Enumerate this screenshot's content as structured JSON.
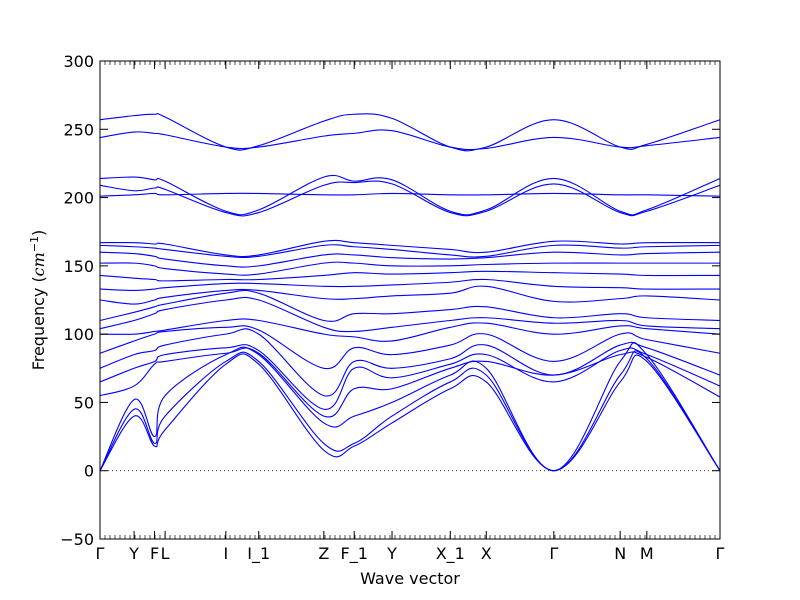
{
  "chart_data": {
    "type": "line",
    "title": "",
    "xlabel": "Wave vector",
    "ylabel_prefix": "Frequency (",
    "ylabel_unit": "cm",
    "ylabel_exp": "−1",
    "ylabel_suffix": ")",
    "ylim": [
      -50,
      300
    ],
    "yticks": [
      -50,
      0,
      50,
      100,
      150,
      200,
      250,
      300
    ],
    "ytick_labels": [
      "−50",
      "0",
      "50",
      "100",
      "150",
      "200",
      "250",
      "300"
    ],
    "xlim": [
      0,
      1
    ],
    "xticks": [
      {
        "label": "Γ",
        "x": 0.0
      },
      {
        "label": "Y",
        "x": 0.055
      },
      {
        "label": "F",
        "x": 0.088
      },
      {
        "label": "L",
        "x": 0.105
      },
      {
        "label": "I",
        "x": 0.203
      },
      {
        "label": "I_1",
        "x": 0.256
      },
      {
        "label": "Z",
        "x": 0.361
      },
      {
        "label": "F_1",
        "x": 0.41
      },
      {
        "label": "Y",
        "x": 0.471
      },
      {
        "label": "X_1",
        "x": 0.565
      },
      {
        "label": "X",
        "x": 0.623
      },
      {
        "label": "Γ",
        "x": 0.732
      },
      {
        "label": "N",
        "x": 0.839
      },
      {
        "label": "M",
        "x": 0.882
      },
      {
        "label": "Γ",
        "x": 1.0
      }
    ],
    "zero_line": true,
    "grid": false,
    "series_color": "#0000ff",
    "x": [
      0.0,
      0.055,
      0.088,
      0.105,
      0.203,
      0.256,
      0.361,
      0.41,
      0.471,
      0.565,
      0.623,
      0.732,
      0.839,
      0.882,
      1.0
    ],
    "series": [
      {
        "values": [
          0,
          40,
          18,
          30,
          78,
          78,
          15,
          18,
          35,
          60,
          65,
          0,
          65,
          80,
          0
        ]
      },
      {
        "values": [
          0,
          45,
          20,
          40,
          80,
          80,
          20,
          20,
          40,
          65,
          70,
          0,
          70,
          82,
          0
        ]
      },
      {
        "values": [
          0,
          52,
          25,
          55,
          85,
          85,
          35,
          40,
          50,
          70,
          75,
          0,
          80,
          85,
          0
        ]
      },
      {
        "values": [
          55,
          62,
          78,
          80,
          86,
          86,
          40,
          60,
          60,
          75,
          80,
          70,
          85,
          83,
          54
        ]
      },
      {
        "values": [
          65,
          75,
          80,
          85,
          90,
          88,
          45,
          75,
          68,
          78,
          85,
          65,
          88,
          85,
          62
        ]
      },
      {
        "values": [
          75,
          85,
          88,
          92,
          100,
          100,
          55,
          80,
          75,
          82,
          92,
          70,
          92,
          90,
          70
        ]
      },
      {
        "values": [
          86,
          95,
          100,
          102,
          105,
          103,
          75,
          90,
          85,
          92,
          100,
          80,
          100,
          96,
          86
        ]
      },
      {
        "values": [
          100,
          100,
          102,
          103,
          110,
          110,
          100,
          98,
          95,
          105,
          108,
          100,
          106,
          104,
          100
        ]
      },
      {
        "values": [
          104,
          110,
          115,
          118,
          125,
          125,
          105,
          102,
          105,
          110,
          112,
          108,
          110,
          106,
          104
        ]
      },
      {
        "values": [
          110,
          116,
          120,
          122,
          130,
          130,
          110,
          115,
          115,
          118,
          120,
          112,
          115,
          112,
          110
        ]
      },
      {
        "values": [
          125,
          122,
          125,
          127,
          132,
          132,
          126,
          126,
          128,
          130,
          135,
          124,
          126,
          128,
          125
        ]
      },
      {
        "values": [
          133,
          132,
          133,
          134,
          137,
          137,
          135,
          135,
          136,
          138,
          140,
          135,
          134,
          133,
          133
        ]
      },
      {
        "values": [
          143,
          141,
          140,
          139,
          140,
          140,
          143,
          145,
          144,
          145,
          146,
          145,
          144,
          143,
          143
        ]
      },
      {
        "values": [
          152,
          152,
          150,
          148,
          144,
          144,
          152,
          152,
          150,
          150,
          151,
          152,
          152,
          152,
          152
        ]
      },
      {
        "values": [
          160,
          159,
          157,
          155,
          150,
          150,
          158,
          158,
          156,
          155,
          156,
          160,
          158,
          159,
          160
        ]
      },
      {
        "values": [
          165,
          164,
          163,
          162,
          157,
          157,
          165,
          164,
          162,
          158,
          157,
          165,
          163,
          164,
          165
        ]
      },
      {
        "values": [
          167,
          167,
          166,
          166,
          158,
          158,
          168,
          167,
          165,
          162,
          160,
          168,
          166,
          167,
          167
        ]
      },
      {
        "values": [
          201,
          202,
          203,
          202,
          203,
          203,
          202,
          202,
          203,
          202,
          202,
          203,
          202,
          202,
          201
        ]
      },
      {
        "values": [
          209,
          205,
          207,
          206,
          189,
          189,
          209,
          211,
          210,
          189,
          190,
          210,
          189,
          190,
          209
        ]
      },
      {
        "values": [
          214,
          215,
          213,
          212,
          190,
          191,
          215,
          212,
          213,
          190,
          191,
          214,
          190,
          191,
          214
        ]
      },
      {
        "values": [
          244,
          248,
          247,
          246,
          237,
          237,
          245,
          247,
          249,
          237,
          236,
          244,
          237,
          238,
          244
        ]
      },
      {
        "values": [
          257,
          260,
          261,
          259,
          237,
          238,
          256,
          261,
          258,
          237,
          237,
          257,
          237,
          239,
          257
        ]
      }
    ]
  }
}
